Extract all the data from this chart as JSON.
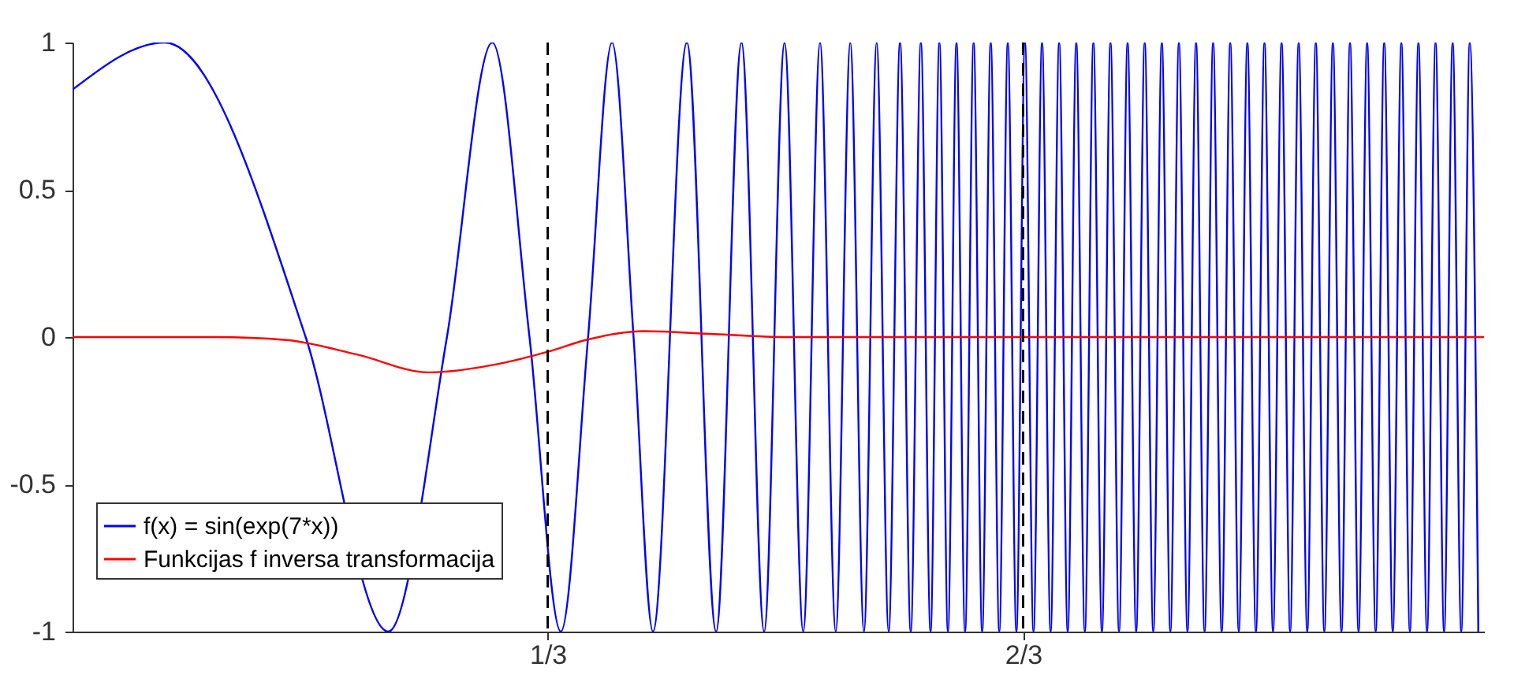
{
  "chart_data": {
    "type": "line",
    "xlim": [
      0,
      0.99
    ],
    "xticks": [
      {
        "value": 0.3333,
        "label": "1/3"
      },
      {
        "value": 0.6667,
        "label": "2/3"
      }
    ],
    "ylim": [
      -1,
      1
    ],
    "yticks": [
      -1,
      -0.5,
      0,
      0.5,
      1
    ],
    "grid": false,
    "legend": "bottom left",
    "ref_lines": [
      {
        "axis": "x",
        "value": 0.3333,
        "color": "#000000",
        "line_style": "dashed"
      },
      {
        "axis": "x",
        "value": 0.6667,
        "color": "#000000",
        "line_style": "dashed"
      }
    ],
    "series": [
      {
        "name": "f(x) = sin(exp(7*x))",
        "color": "#0000ff",
        "x": [
          0,
          0.0645,
          0.1635,
          0.2215,
          0.2626,
          0.2944,
          0.3205,
          0.3425,
          0.3616,
          0.3784,
          0.3935,
          0.4071,
          0.4309,
          0.4514,
          0.4692,
          0.4851,
          0.4994,
          0.5125,
          0.5243,
          0.5353,
          0.5455,
          0.5551,
          0.564,
          0.5724,
          0.5804,
          0.5879,
          0.595,
          0.6018,
          0.608,
          0.614,
          0.62,
          0.626,
          0.632,
          0.638,
          0.644,
          0.65,
          0.656,
          0.662,
          0.668,
          0.674,
          0.68,
          0.686,
          0.692,
          0.698,
          0.704,
          0.71,
          0.716,
          0.722,
          0.728,
          0.734,
          0.74,
          0.746,
          0.752,
          0.758,
          0.764,
          0.77,
          0.776,
          0.782,
          0.788,
          0.794,
          0.8,
          0.806,
          0.812,
          0.818,
          0.824,
          0.83,
          0.836,
          0.842,
          0.848,
          0.854,
          0.86,
          0.866,
          0.872,
          0.878,
          0.884,
          0.89,
          0.896,
          0.902,
          0.908,
          0.914,
          0.92,
          0.926,
          0.932,
          0.938,
          0.944,
          0.95,
          0.956,
          0.962,
          0.968,
          0.974,
          0.98,
          0.986
        ],
        "values": [
          0.84,
          1,
          0,
          -1,
          0,
          1,
          0,
          -1,
          0,
          1,
          0,
          -1,
          1,
          -1,
          1,
          -1,
          1,
          -1,
          1,
          -1,
          1,
          -1,
          1,
          -1,
          1,
          -1,
          1,
          -1,
          1,
          -1,
          1,
          -1,
          1,
          -1,
          1,
          -1,
          1,
          -1,
          1,
          -1,
          1,
          -1,
          1,
          -1,
          1,
          -1,
          1,
          -1,
          1,
          -1,
          1,
          -1,
          1,
          -1,
          1,
          -1,
          1,
          -1,
          1,
          -1,
          1,
          -1,
          1,
          -1,
          1,
          -1,
          1,
          -1,
          1,
          -1,
          1,
          -1,
          1,
          -1,
          1,
          -1,
          1,
          -1,
          1,
          -1,
          1,
          -1,
          1,
          -1,
          1,
          -1,
          1,
          -1,
          1,
          -1,
          1,
          -1
        ]
      },
      {
        "name": "Funkcijas f inversa transformacija",
        "color": "#ff0000",
        "x": [
          0,
          0.05,
          0.1,
          0.15,
          0.2,
          0.25,
          0.3,
          0.3333,
          0.36,
          0.4,
          0.45,
          0.5,
          0.6,
          0.7,
          0.8,
          0.9,
          0.99
        ],
        "values": [
          0,
          0,
          0,
          -0.01,
          -0.06,
          -0.12,
          -0.09,
          -0.05,
          -0.01,
          0.02,
          0.01,
          0,
          0,
          0,
          0,
          0,
          0
        ]
      }
    ]
  }
}
